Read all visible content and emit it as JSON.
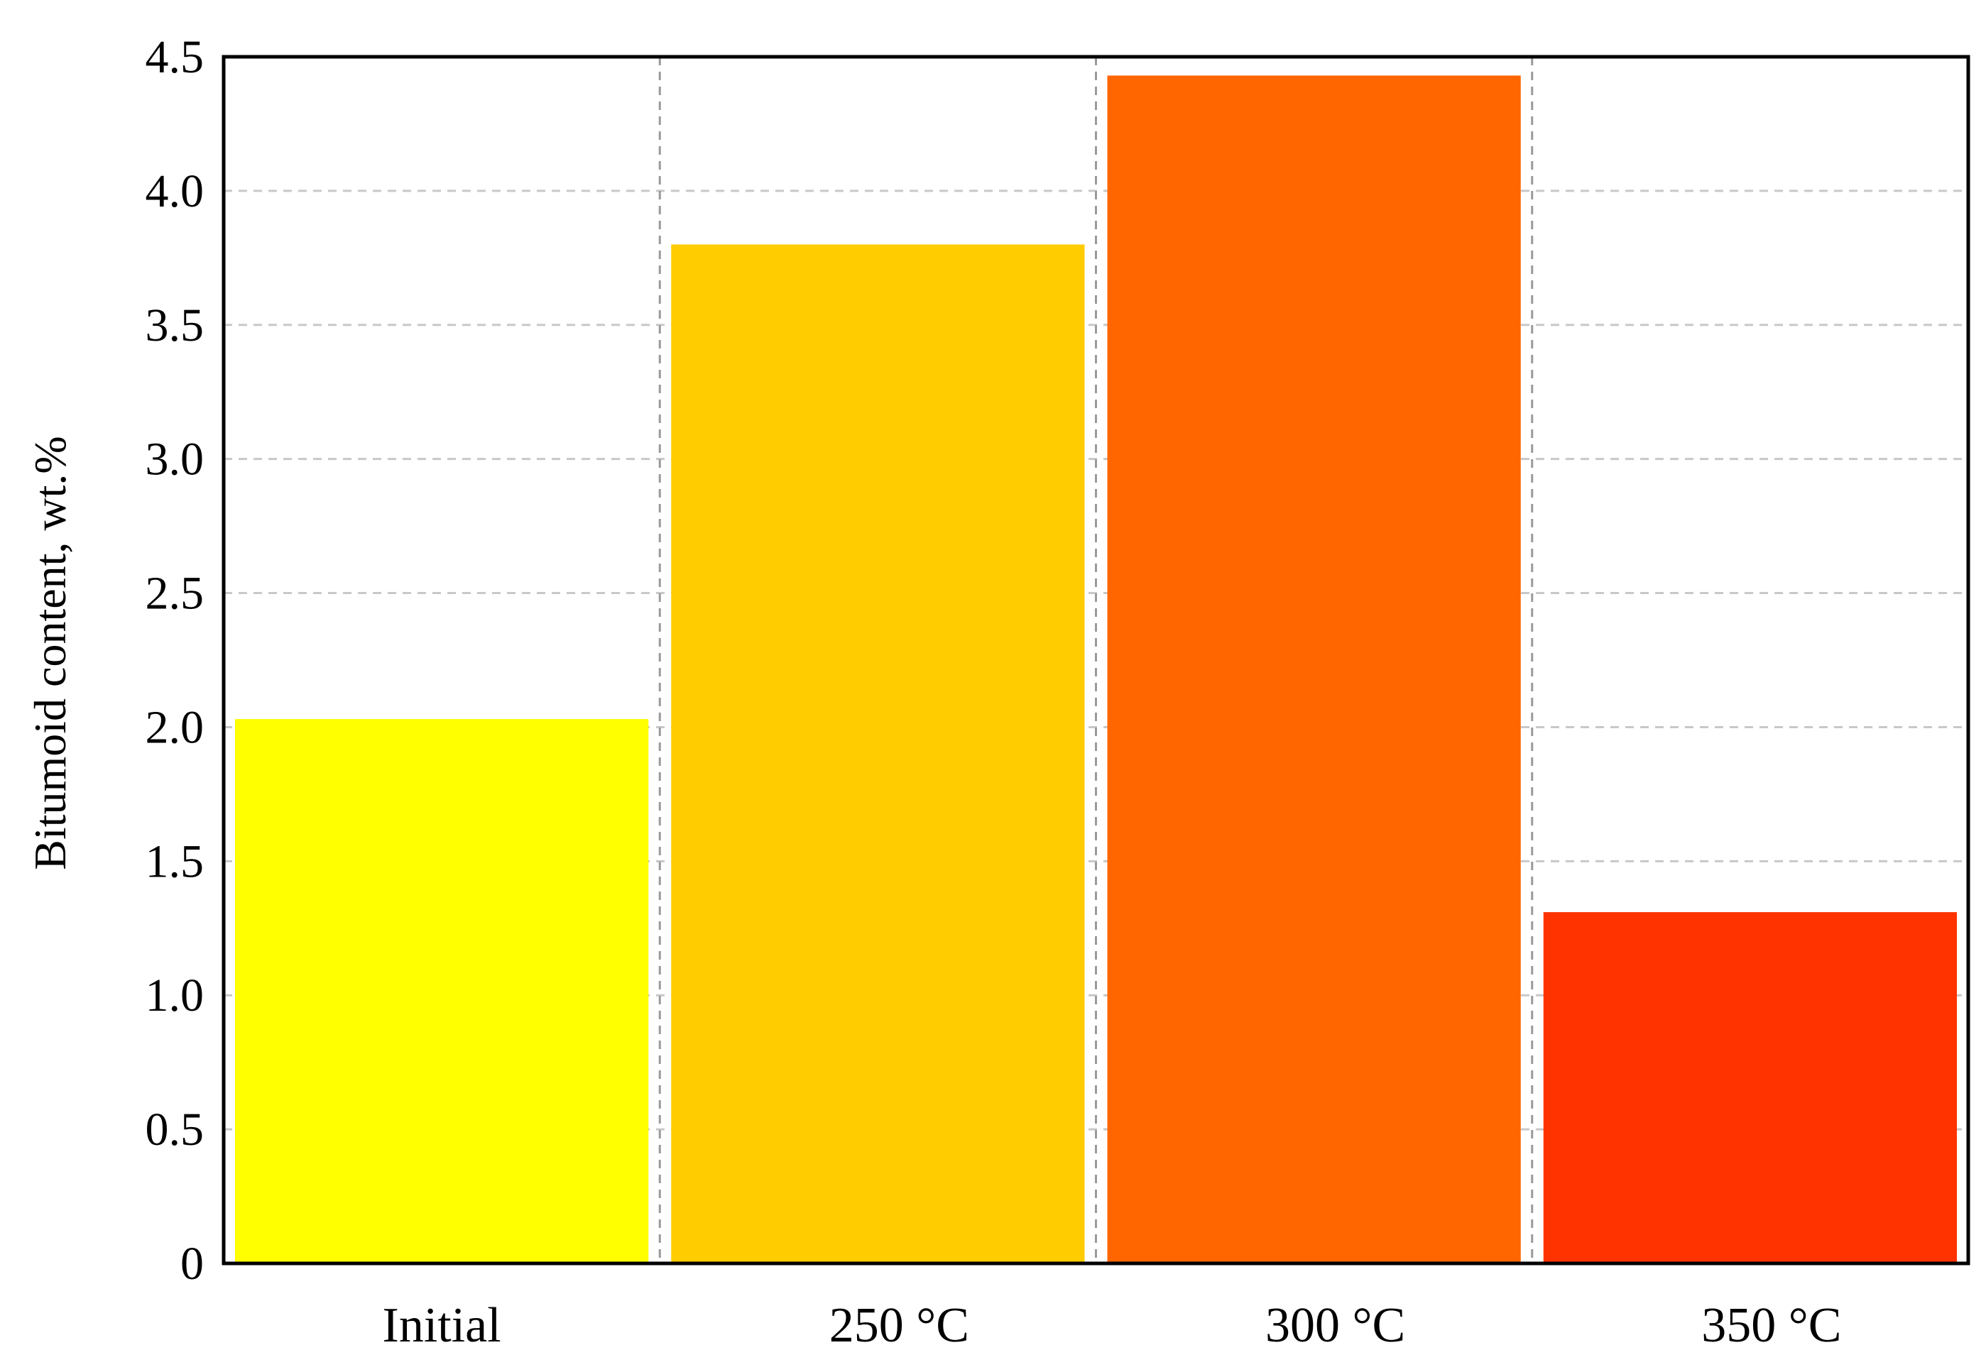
{
  "chart_data": {
    "type": "bar",
    "title": "",
    "xlabel": "",
    "ylabel": "Bitumoid content, wt.%",
    "categories": [
      "Initial",
      "250 °C",
      "300 °C",
      "350 °C"
    ],
    "values": [
      2.03,
      3.8,
      4.43,
      1.31
    ],
    "bar_colors": [
      "#FFFF00",
      "#FFCC00",
      "#FF6600",
      "#FF3300"
    ],
    "ylim": [
      0,
      4.5
    ],
    "yticks": [
      0,
      0.5,
      1.0,
      1.5,
      2.0,
      2.5,
      3.0,
      3.5,
      4.0,
      4.5
    ],
    "ytick_labels": [
      "0",
      "0.5",
      "1.0",
      "1.5",
      "2.0",
      "2.5",
      "3.0",
      "3.5",
      "4.0",
      "4.5"
    ],
    "grid": true,
    "legend": "none"
  }
}
